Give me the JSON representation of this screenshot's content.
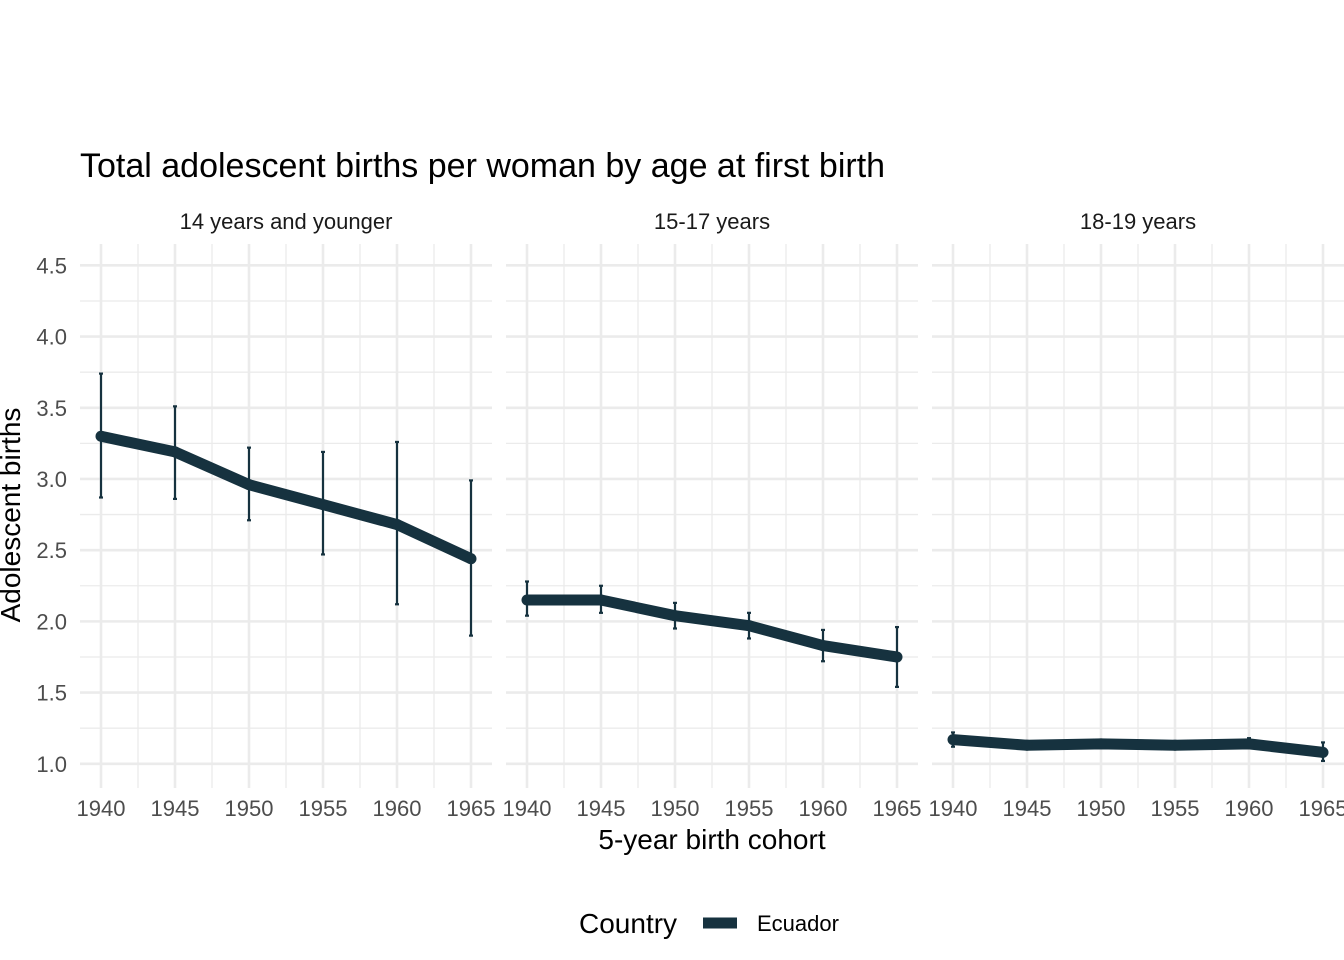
{
  "chart_data": {
    "type": "line",
    "title": "Total adolescent births per woman by age at first birth",
    "xlabel": "5-year birth cohort",
    "ylabel": "Adolescent births",
    "x": [
      1940,
      1945,
      1950,
      1955,
      1960,
      1965
    ],
    "x_ticks": [
      "1940",
      "1945",
      "1950",
      "1955",
      "1960",
      "1965"
    ],
    "y_ticks": [
      "1.0",
      "1.5",
      "2.0",
      "2.5",
      "3.0",
      "3.5",
      "4.0",
      "4.5"
    ],
    "ylim": [
      0.83,
      4.65
    ],
    "grid": true,
    "legend": {
      "title": "Country",
      "position": "bottom",
      "entries": [
        "Ecuador"
      ]
    },
    "series_color": "#16323f",
    "panels": [
      {
        "label": "14 years and younger",
        "series": [
          {
            "name": "Ecuador",
            "values": [
              3.3,
              3.19,
              2.96,
              2.82,
              2.68,
              2.44
            ],
            "lower": [
              2.87,
              2.86,
              2.71,
              2.47,
              2.12,
              1.9
            ],
            "upper": [
              3.74,
              3.51,
              3.22,
              3.19,
              3.26,
              2.99
            ]
          }
        ]
      },
      {
        "label": "15-17 years",
        "series": [
          {
            "name": "Ecuador",
            "values": [
              2.15,
              2.15,
              2.04,
              1.97,
              1.83,
              1.75
            ],
            "lower": [
              2.04,
              2.06,
              1.95,
              1.88,
              1.72,
              1.54
            ],
            "upper": [
              2.28,
              2.25,
              2.13,
              2.06,
              1.94,
              1.96
            ]
          }
        ]
      },
      {
        "label": "18-19 years",
        "series": [
          {
            "name": "Ecuador",
            "values": [
              1.17,
              1.13,
              1.14,
              1.13,
              1.14,
              1.08
            ],
            "lower": [
              1.12,
              1.11,
              1.12,
              1.11,
              1.11,
              1.02
            ],
            "upper": [
              1.22,
              1.16,
              1.17,
              1.16,
              1.18,
              1.15
            ]
          }
        ]
      }
    ]
  }
}
